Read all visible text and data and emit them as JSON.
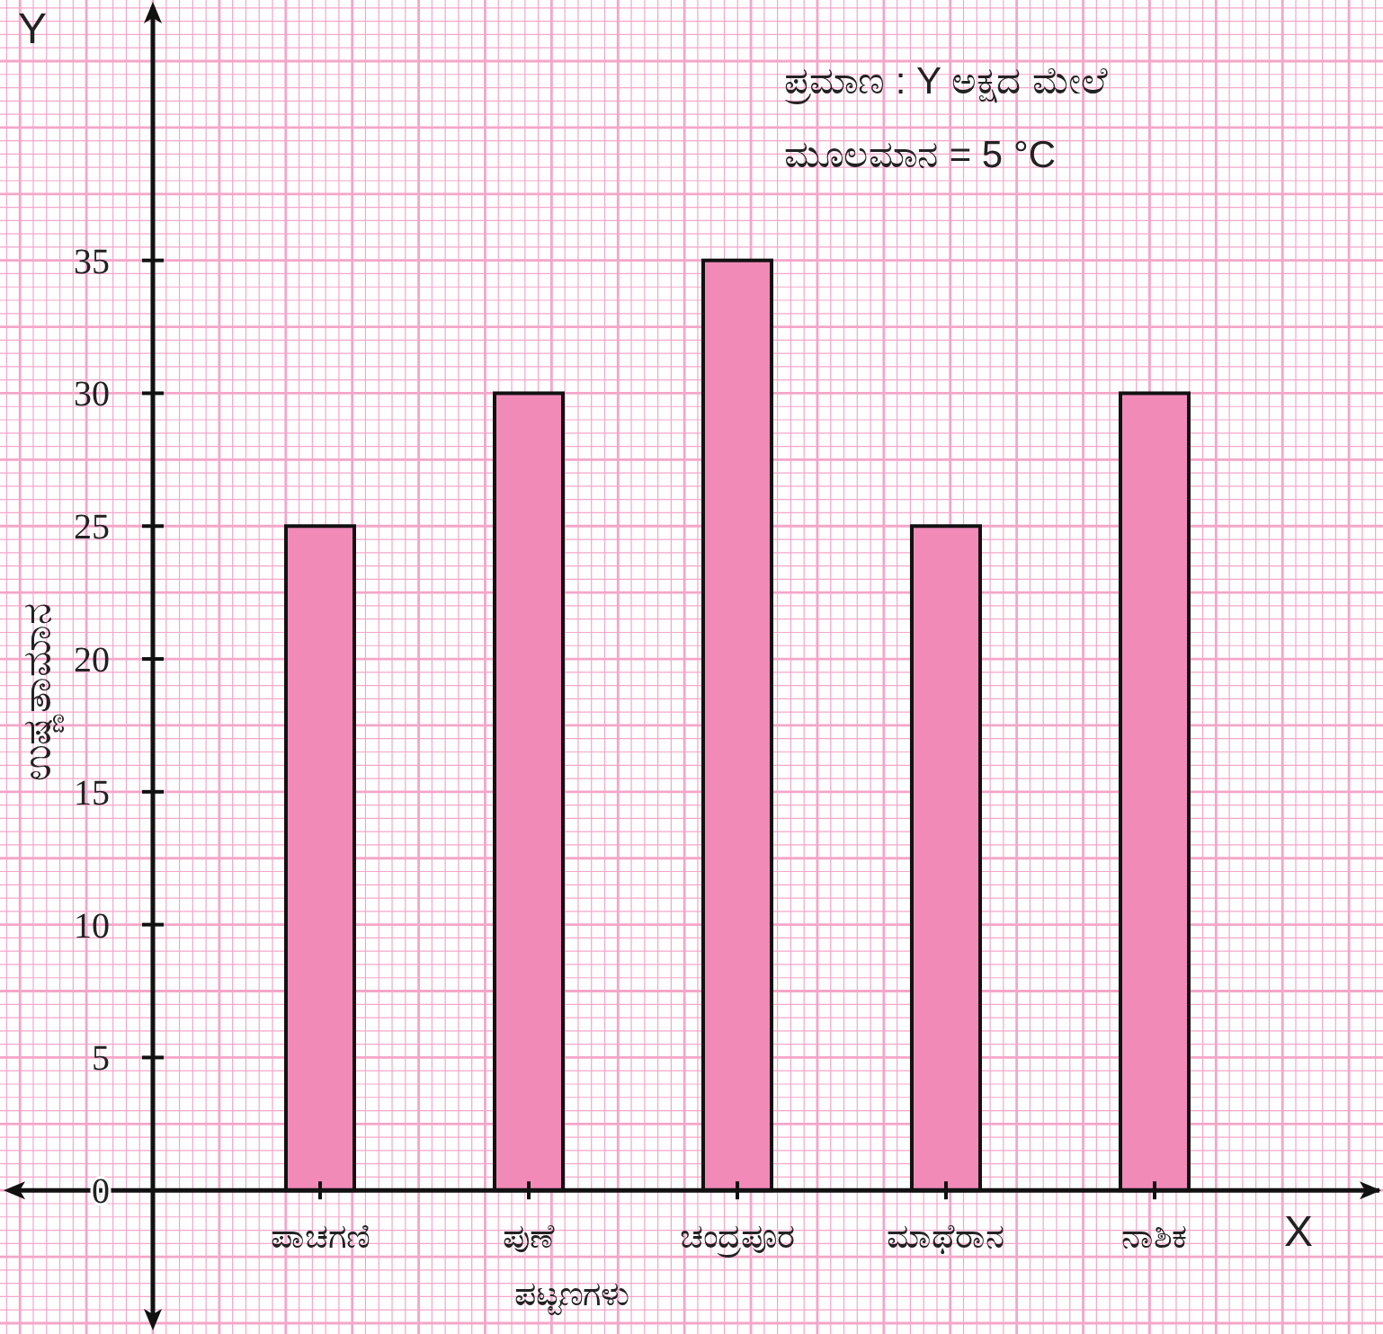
{
  "chart_data": {
    "type": "bar",
    "xlabel": "ಪಟ್ಟಣಗಳು",
    "ylabel": "ಉಷ್ಣತಾಮಾನ",
    "categories": [
      "ಪಾಚಗಣಿ",
      "ಪುಣೆ",
      "ಚಂದ್ರಪೂರ",
      "ಮಾಥೆರಾನ",
      "ನಾಶಿಕ"
    ],
    "values": [
      25,
      30,
      35,
      25,
      30
    ],
    "color": "#f28ab8",
    "ylim": [
      -5,
      44.8
    ],
    "yticks": [
      0,
      5,
      10,
      15,
      20,
      25,
      30,
      35
    ],
    "grid": true,
    "annotations": [
      "ಪ್ರಮಾಣ : Y ಅಕ್ಷದ ಮೇಲೆ",
      "ಮೂಲಮಾನ = 5 °C",
      "X",
      "Y"
    ]
  }
}
